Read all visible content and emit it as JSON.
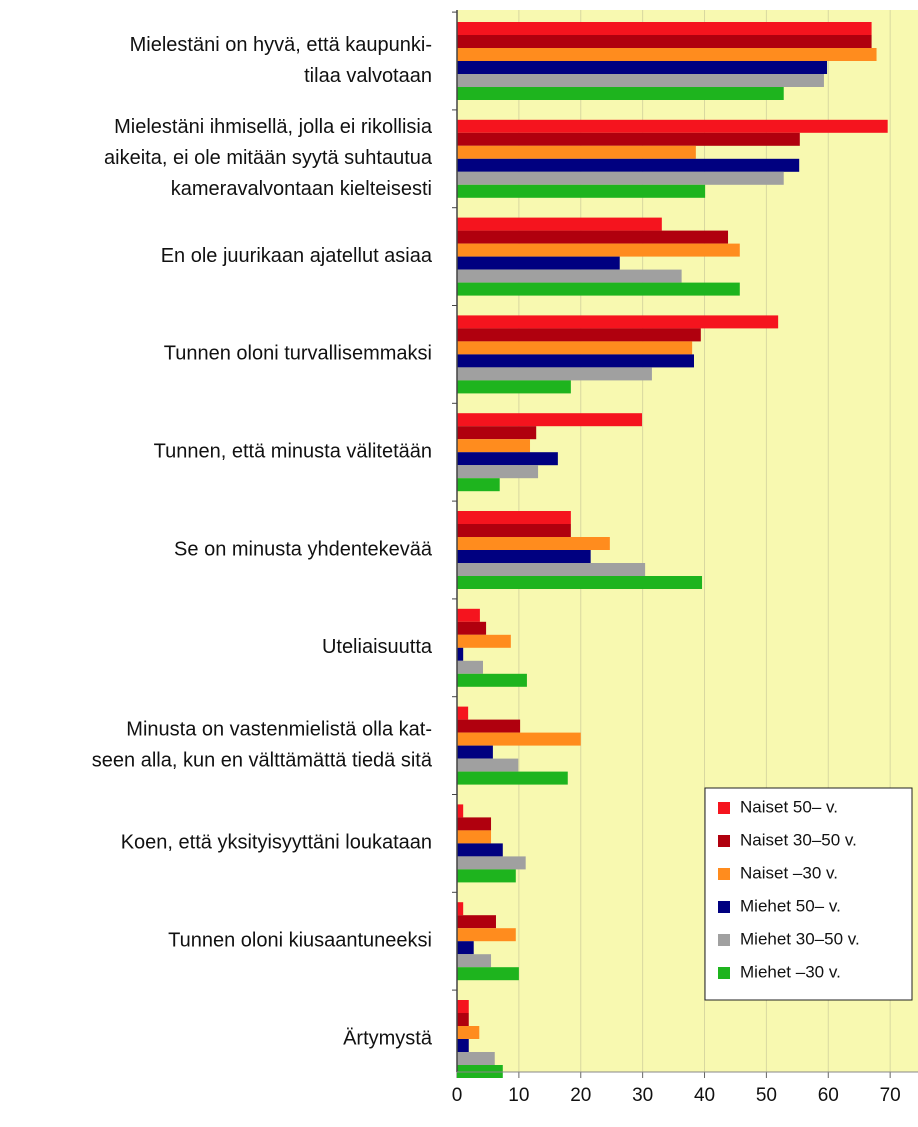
{
  "chart_data": {
    "type": "bar",
    "orientation": "horizontal",
    "categories": [
      [
        "Mielestäni on hyvä, että kaupunki-",
        "tilaa valvotaan"
      ],
      [
        "Mielestäni ihmisellä, jolla ei rikollisia",
        "aikeita, ei ole mitään syytä suhtautua",
        "kameravalvontaan kielteisesti"
      ],
      [
        "En ole juurikaan ajatellut asiaa"
      ],
      [
        "Tunnen oloni turvallisemmaksi"
      ],
      [
        "Tunnen, että minusta välitetään"
      ],
      [
        "Se on minusta yhdentekevää"
      ],
      [
        "Uteliaisuutta"
      ],
      [
        "Minusta on vastenmielistä olla kat-",
        "seen alla, kun en välttämättä tiedä sitä"
      ],
      [
        "Koen, että yksityisyyttäni loukataan"
      ],
      [
        "Tunnen oloni kiusaantuneeksi"
      ],
      [
        "Ärtymystä"
      ]
    ],
    "series": [
      {
        "name": "Naiset 50– v.",
        "color": "#f5141e",
        "values": [
          67,
          69.6,
          33.1,
          51.9,
          29.9,
          18.4,
          3.7,
          1.8,
          1,
          1,
          1.9
        ]
      },
      {
        "name": "Naiset 30–50 v.",
        "color": "#b0000e",
        "values": [
          67,
          55.4,
          43.8,
          39.4,
          12.8,
          18.4,
          4.7,
          10.2,
          5.5,
          6.3,
          1.9
        ]
      },
      {
        "name": "Naiset –30 v.",
        "color": "#ff8c1e",
        "values": [
          67.8,
          38.6,
          45.7,
          38,
          11.8,
          24.7,
          8.7,
          20,
          5.5,
          9.5,
          3.6
        ]
      },
      {
        "name": "Miehet 50– v.",
        "color": "#000080",
        "values": [
          59.8,
          55.3,
          26.3,
          38.3,
          16.3,
          21.6,
          1,
          5.8,
          7.4,
          2.7,
          1.9
        ]
      },
      {
        "name": "Miehet 30–50 v.",
        "color": "#a0a0a0",
        "values": [
          59.3,
          52.8,
          36.3,
          31.5,
          13.1,
          30.4,
          4.2,
          9.9,
          11.1,
          5.5,
          6.1
        ]
      },
      {
        "name": "Miehet –30 v.",
        "color": "#1eb41e",
        "values": [
          52.8,
          40.1,
          45.7,
          18.4,
          6.9,
          39.6,
          11.3,
          17.9,
          9.5,
          10,
          7.4
        ]
      }
    ],
    "xlim": [
      0,
      74.5
    ],
    "xticks": [
      0,
      10,
      20,
      30,
      40,
      50,
      60,
      70
    ],
    "grid": true,
    "legend": "lower right"
  }
}
